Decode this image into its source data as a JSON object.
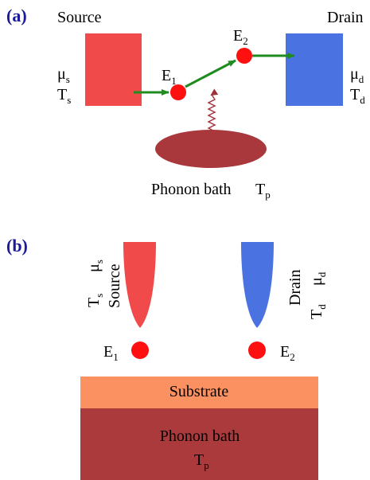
{
  "panel_a": {
    "label": "(a)",
    "source": {
      "title": "Source",
      "mu": "μ",
      "mu_sub": "s",
      "t": "T",
      "t_sub": "s",
      "color": "#f04a4a"
    },
    "drain": {
      "title": "Drain",
      "mu": "μ",
      "mu_sub": "d",
      "t": "T",
      "t_sub": "d",
      "color": "#4a72e0"
    },
    "level1": {
      "name": "E",
      "sub": "1"
    },
    "level2": {
      "name": "E",
      "sub": "2"
    },
    "bath": {
      "text": "Phonon bath",
      "t": "T",
      "t_sub": "p",
      "color": "#a8383b"
    },
    "arrow_color": "#1e8c1e",
    "dot_color": "#ff1010",
    "phonon_color": "#a0303a"
  },
  "panel_b": {
    "label": "(b)",
    "source": {
      "title": "Source",
      "mu": "μ",
      "mu_sub": "s",
      "t": "T",
      "t_sub": "s",
      "color": "#f04a4a"
    },
    "drain": {
      "title": "Drain",
      "mu": "μ",
      "mu_sub": "d",
      "t": "T",
      "t_sub": "d",
      "color": "#4a72e0"
    },
    "level1": {
      "name": "E",
      "sub": "1"
    },
    "level2": {
      "name": "E",
      "sub": "2"
    },
    "substrate": {
      "text": "Substrate",
      "color": "#fb9160"
    },
    "bath": {
      "text": "Phonon bath",
      "t": "T",
      "t_sub": "p",
      "color": "#ab3a3c"
    }
  }
}
